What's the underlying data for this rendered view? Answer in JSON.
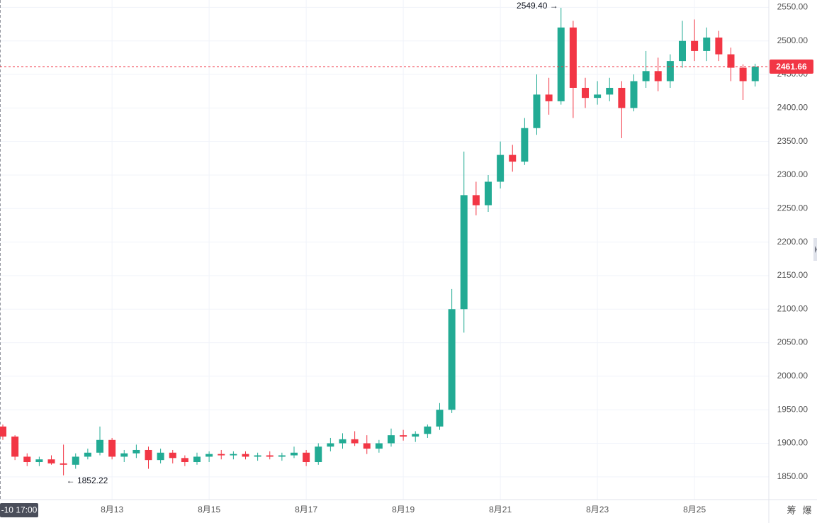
{
  "chart_data": {
    "type": "candlestick",
    "up_color": "#22ab94",
    "down_color": "#f23645",
    "grid": true,
    "ylim": [
      1816,
      2561
    ],
    "yticks": [
      {
        "value": 1850,
        "label": "1850.00"
      },
      {
        "value": 1900,
        "label": "1900.00"
      },
      {
        "value": 1950,
        "label": "1950.00"
      },
      {
        "value": 2000,
        "label": "2000.00"
      },
      {
        "value": 2050,
        "label": "2050.00"
      },
      {
        "value": 2100,
        "label": "2100.00"
      },
      {
        "value": 2150,
        "label": "2150.00"
      },
      {
        "value": 2200,
        "label": "2200.00"
      },
      {
        "value": 2250,
        "label": "2250.00"
      },
      {
        "value": 2300,
        "label": "2300.00"
      },
      {
        "value": 2350,
        "label": "2350.00"
      },
      {
        "value": 2400,
        "label": "2400.00"
      },
      {
        "value": 2450,
        "label": "2450.00"
      },
      {
        "value": 2500,
        "label": "2500.00"
      },
      {
        "value": 2550,
        "label": "2550.00"
      }
    ],
    "xticks": [
      {
        "value": 9,
        "label": "8月13"
      },
      {
        "value": 17,
        "label": "8月15"
      },
      {
        "value": 25,
        "label": "8月17"
      },
      {
        "value": 33,
        "label": "8月19"
      },
      {
        "value": 41,
        "label": "8月21"
      },
      {
        "value": 49,
        "label": "8月23"
      },
      {
        "value": 57,
        "label": "8月25"
      }
    ],
    "open": [
      1925,
      1910,
      1880,
      1872,
      1876,
      1870,
      1868,
      1880,
      1886,
      1905,
      1880,
      1885,
      1890,
      1875,
      1886,
      1878,
      1872,
      1880,
      1884,
      1882,
      1884,
      1880,
      1882,
      1880,
      1882,
      1886,
      1872,
      1895,
      1900,
      1906,
      1900,
      1892,
      1900,
      1912,
      1910,
      1914,
      1925,
      1950,
      2100,
      2270,
      2255,
      2290,
      2330,
      2320,
      2370,
      2420,
      2410,
      2520,
      2430,
      2415,
      2420,
      2430,
      2400,
      2440,
      2455,
      2440,
      2470,
      2500,
      2485,
      2505,
      2480,
      2460,
      2440
    ],
    "high": [
      1928,
      1912,
      1885,
      1880,
      1882,
      1898,
      1885,
      1892,
      1925,
      1908,
      1890,
      1898,
      1895,
      1892,
      1890,
      1882,
      1886,
      1888,
      1890,
      1888,
      1888,
      1886,
      1888,
      1886,
      1895,
      1890,
      1900,
      1908,
      1915,
      1918,
      1912,
      1905,
      1922,
      1920,
      1918,
      1928,
      1960,
      2130,
      2335,
      2290,
      2300,
      2350,
      2345,
      2385,
      2450,
      2445,
      2549.4,
      2530,
      2445,
      2440,
      2445,
      2440,
      2450,
      2485,
      2475,
      2480,
      2530,
      2532,
      2520,
      2515,
      2490,
      2465,
      2466
    ],
    "low": [
      1905,
      1875,
      1866,
      1866,
      1868,
      1852.22,
      1862,
      1876,
      1882,
      1876,
      1872,
      1878,
      1862,
      1870,
      1870,
      1866,
      1868,
      1872,
      1876,
      1876,
      1876,
      1874,
      1876,
      1874,
      1878,
      1866,
      1868,
      1888,
      1892,
      1896,
      1884,
      1886,
      1895,
      1904,
      1902,
      1908,
      1920,
      1945,
      2065,
      2240,
      2245,
      2280,
      2305,
      2315,
      2360,
      2390,
      2405,
      2385,
      2400,
      2405,
      2410,
      2355,
      2395,
      2430,
      2425,
      2430,
      2460,
      2470,
      2470,
      2470,
      2440,
      2412,
      2432
    ],
    "close": [
      1910,
      1880,
      1872,
      1876,
      1870,
      1868,
      1880,
      1886,
      1905,
      1880,
      1885,
      1890,
      1875,
      1886,
      1878,
      1872,
      1880,
      1884,
      1882,
      1884,
      1880,
      1882,
      1880,
      1882,
      1886,
      1872,
      1895,
      1900,
      1906,
      1900,
      1892,
      1900,
      1912,
      1910,
      1914,
      1925,
      1950,
      2100,
      2270,
      2255,
      2290,
      2330,
      2320,
      2370,
      2420,
      2410,
      2520,
      2430,
      2415,
      2420,
      2430,
      2400,
      2440,
      2455,
      2440,
      2470,
      2500,
      2485,
      2505,
      2480,
      2460,
      2440,
      2461.66
    ],
    "last_price": 2461.66,
    "annotations": [
      {
        "text": "2549.40 →",
        "value": 2549.4,
        "index": 46
      },
      {
        "text": "← 1852.22",
        "value": 1852.22,
        "index": 5
      }
    ],
    "crosshair_label": "-10 17:00",
    "toolbar": [
      "筹",
      "爆"
    ]
  }
}
